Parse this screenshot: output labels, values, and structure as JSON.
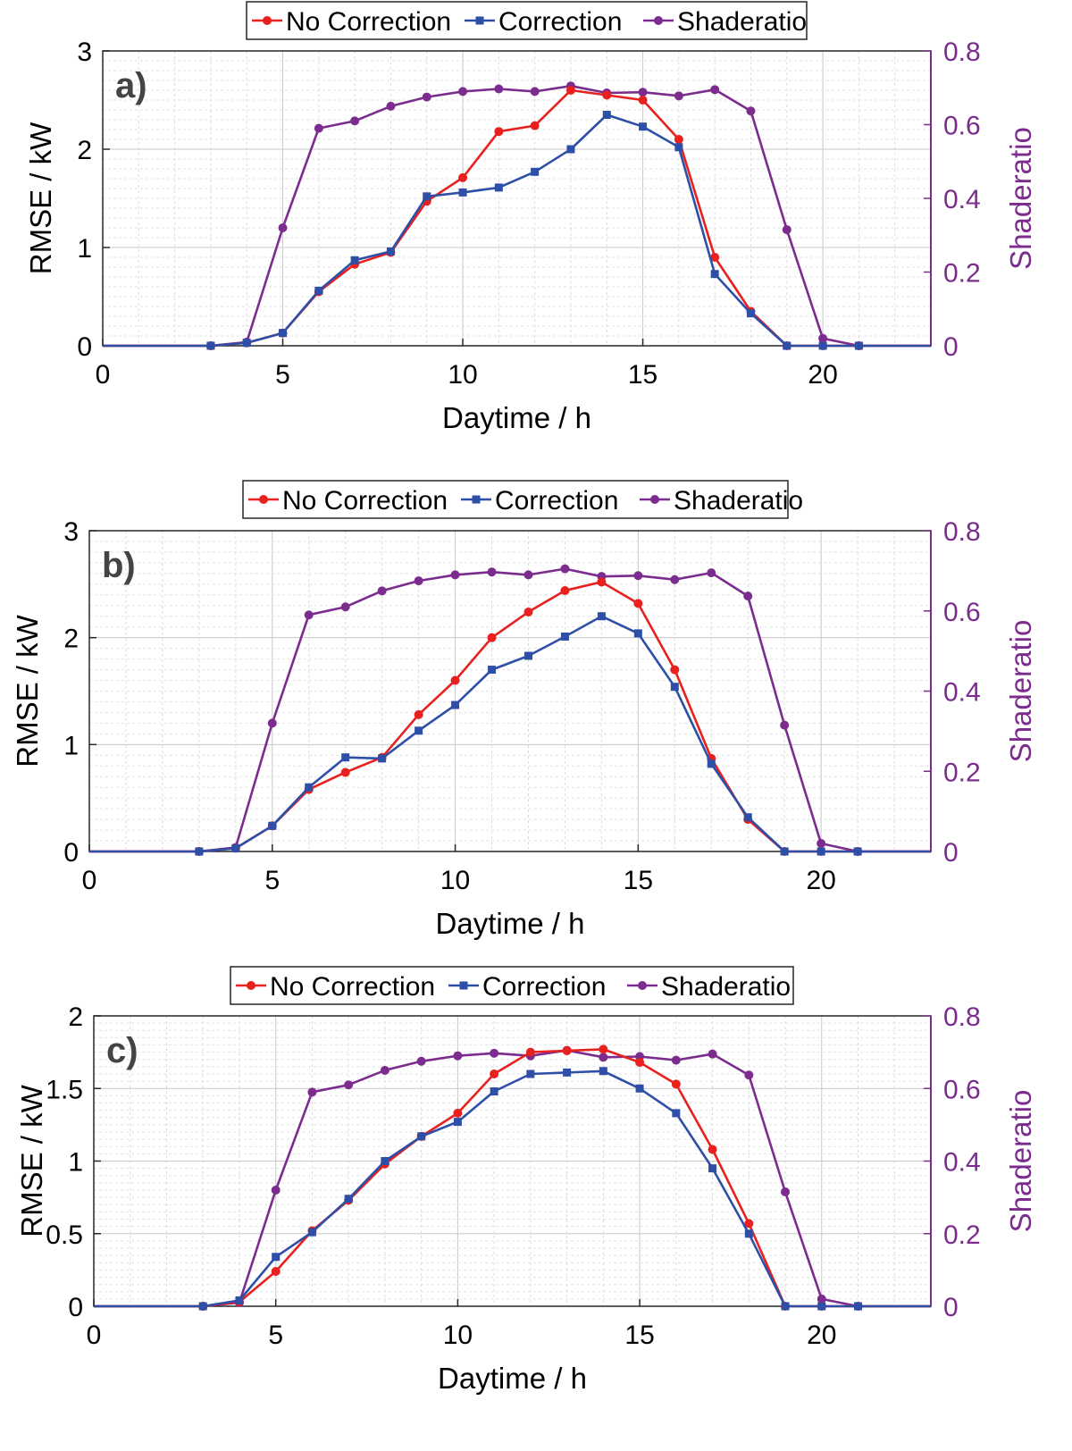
{
  "colors": {
    "no_correction": "#E8201E",
    "correction": "#2E4FA8",
    "shaderatio": "#7B2C8E"
  },
  "legend": {
    "no_correction": "No Correction",
    "correction": "Correction",
    "shaderatio": "Shaderatio"
  },
  "chart_data": [
    {
      "type": "line",
      "panel_label": "a)",
      "xlabel": "Daytime / h",
      "ylabel": "RMSE / kW",
      "y2label": "Shaderatio",
      "xlim": [
        0,
        23
      ],
      "xticks": [
        0,
        5,
        10,
        15,
        20
      ],
      "ylim": [
        0,
        3
      ],
      "yticks": [
        0,
        1,
        2,
        3
      ],
      "y2lim": [
        0,
        0.8
      ],
      "y2ticks": [
        0,
        0.2,
        0.4,
        0.6,
        0.8
      ],
      "grid": true,
      "legend_position": "top",
      "x": [
        0,
        1,
        2,
        3,
        4,
        5,
        6,
        7,
        8,
        9,
        10,
        11,
        12,
        13,
        14,
        15,
        16,
        17,
        18,
        19,
        20,
        21,
        22,
        23
      ],
      "series": [
        {
          "name": "No Correction",
          "axis": "left",
          "marker": "circle",
          "values": [
            0,
            0,
            0,
            0,
            0.03,
            0.13,
            0.55,
            0.83,
            0.95,
            1.47,
            1.71,
            2.18,
            2.24,
            2.6,
            2.55,
            2.5,
            2.1,
            0.9,
            0.35,
            0,
            0,
            0,
            0,
            0
          ]
        },
        {
          "name": "Correction",
          "axis": "left",
          "marker": "square",
          "values": [
            0,
            0,
            0,
            0,
            0.03,
            0.13,
            0.56,
            0.87,
            0.96,
            1.52,
            1.56,
            1.61,
            1.77,
            2.0,
            2.35,
            2.23,
            2.02,
            0.73,
            0.33,
            0,
            0,
            0,
            0,
            0
          ]
        },
        {
          "name": "Shaderatio",
          "axis": "right",
          "marker": "circle",
          "values": [
            0,
            0,
            0,
            0,
            0.01,
            0.32,
            0.59,
            0.61,
            0.65,
            0.675,
            0.69,
            0.697,
            0.69,
            0.705,
            0.686,
            0.688,
            0.678,
            0.695,
            0.637,
            0.315,
            0.02,
            0,
            0,
            0
          ]
        }
      ]
    },
    {
      "type": "line",
      "panel_label": "b)",
      "xlabel": "Daytime / h",
      "ylabel": "RMSE / kW",
      "y2label": "Shaderatio",
      "xlim": [
        0,
        23
      ],
      "xticks": [
        0,
        5,
        10,
        15,
        20
      ],
      "ylim": [
        0,
        3
      ],
      "yticks": [
        0,
        1,
        2,
        3
      ],
      "y2lim": [
        0,
        0.8
      ],
      "y2ticks": [
        0,
        0.2,
        0.4,
        0.6,
        0.8
      ],
      "grid": true,
      "legend_position": "top",
      "x": [
        0,
        1,
        2,
        3,
        4,
        5,
        6,
        7,
        8,
        9,
        10,
        11,
        12,
        13,
        14,
        15,
        16,
        17,
        18,
        19,
        20,
        21,
        22,
        23
      ],
      "series": [
        {
          "name": "No Correction",
          "axis": "left",
          "marker": "circle",
          "values": [
            0,
            0,
            0,
            0,
            0.03,
            0.24,
            0.58,
            0.74,
            0.88,
            1.28,
            1.6,
            2.0,
            2.24,
            2.44,
            2.52,
            2.32,
            1.7,
            0.87,
            0.3,
            0,
            0,
            0,
            0,
            0
          ]
        },
        {
          "name": "Correction",
          "axis": "left",
          "marker": "square",
          "values": [
            0,
            0,
            0,
            0,
            0.03,
            0.24,
            0.6,
            0.88,
            0.87,
            1.13,
            1.37,
            1.7,
            1.83,
            2.01,
            2.2,
            2.04,
            1.54,
            0.82,
            0.32,
            0,
            0,
            0,
            0,
            0
          ]
        },
        {
          "name": "Shaderatio",
          "axis": "right",
          "marker": "circle",
          "values": [
            0,
            0,
            0,
            0,
            0.01,
            0.32,
            0.59,
            0.61,
            0.65,
            0.675,
            0.69,
            0.697,
            0.69,
            0.705,
            0.686,
            0.688,
            0.678,
            0.695,
            0.637,
            0.315,
            0.02,
            0,
            0,
            0
          ]
        }
      ]
    },
    {
      "type": "line",
      "panel_label": "c)",
      "xlabel": "Daytime / h",
      "ylabel": "RMSE / kW",
      "y2label": "Shaderatio",
      "xlim": [
        0,
        23
      ],
      "xticks": [
        0,
        5,
        10,
        15,
        20
      ],
      "ylim": [
        0,
        2
      ],
      "yticks": [
        0,
        0.5,
        1,
        1.5,
        2
      ],
      "y2lim": [
        0,
        0.8
      ],
      "y2ticks": [
        0,
        0.2,
        0.4,
        0.6,
        0.8
      ],
      "grid": true,
      "legend_position": "top",
      "x": [
        0,
        1,
        2,
        3,
        4,
        5,
        6,
        7,
        8,
        9,
        10,
        11,
        12,
        13,
        14,
        15,
        16,
        17,
        18,
        19,
        20,
        21,
        22,
        23
      ],
      "series": [
        {
          "name": "No Correction",
          "axis": "left",
          "marker": "circle",
          "values": [
            0,
            0,
            0,
            0,
            0.03,
            0.24,
            0.52,
            0.73,
            0.98,
            1.17,
            1.33,
            1.6,
            1.75,
            1.76,
            1.77,
            1.68,
            1.53,
            1.08,
            0.57,
            0,
            0,
            0,
            0,
            0
          ]
        },
        {
          "name": "Correction",
          "axis": "left",
          "marker": "square",
          "values": [
            0,
            0,
            0,
            0,
            0.04,
            0.34,
            0.51,
            0.74,
            1.0,
            1.17,
            1.27,
            1.48,
            1.6,
            1.61,
            1.62,
            1.5,
            1.33,
            0.95,
            0.5,
            0,
            0,
            0,
            0,
            0
          ]
        },
        {
          "name": "Shaderatio",
          "axis": "right",
          "marker": "circle",
          "values": [
            0,
            0,
            0,
            0,
            0.01,
            0.32,
            0.59,
            0.61,
            0.65,
            0.675,
            0.69,
            0.697,
            0.69,
            0.705,
            0.686,
            0.688,
            0.678,
            0.695,
            0.637,
            0.315,
            0.02,
            0,
            0,
            0
          ]
        }
      ]
    }
  ]
}
